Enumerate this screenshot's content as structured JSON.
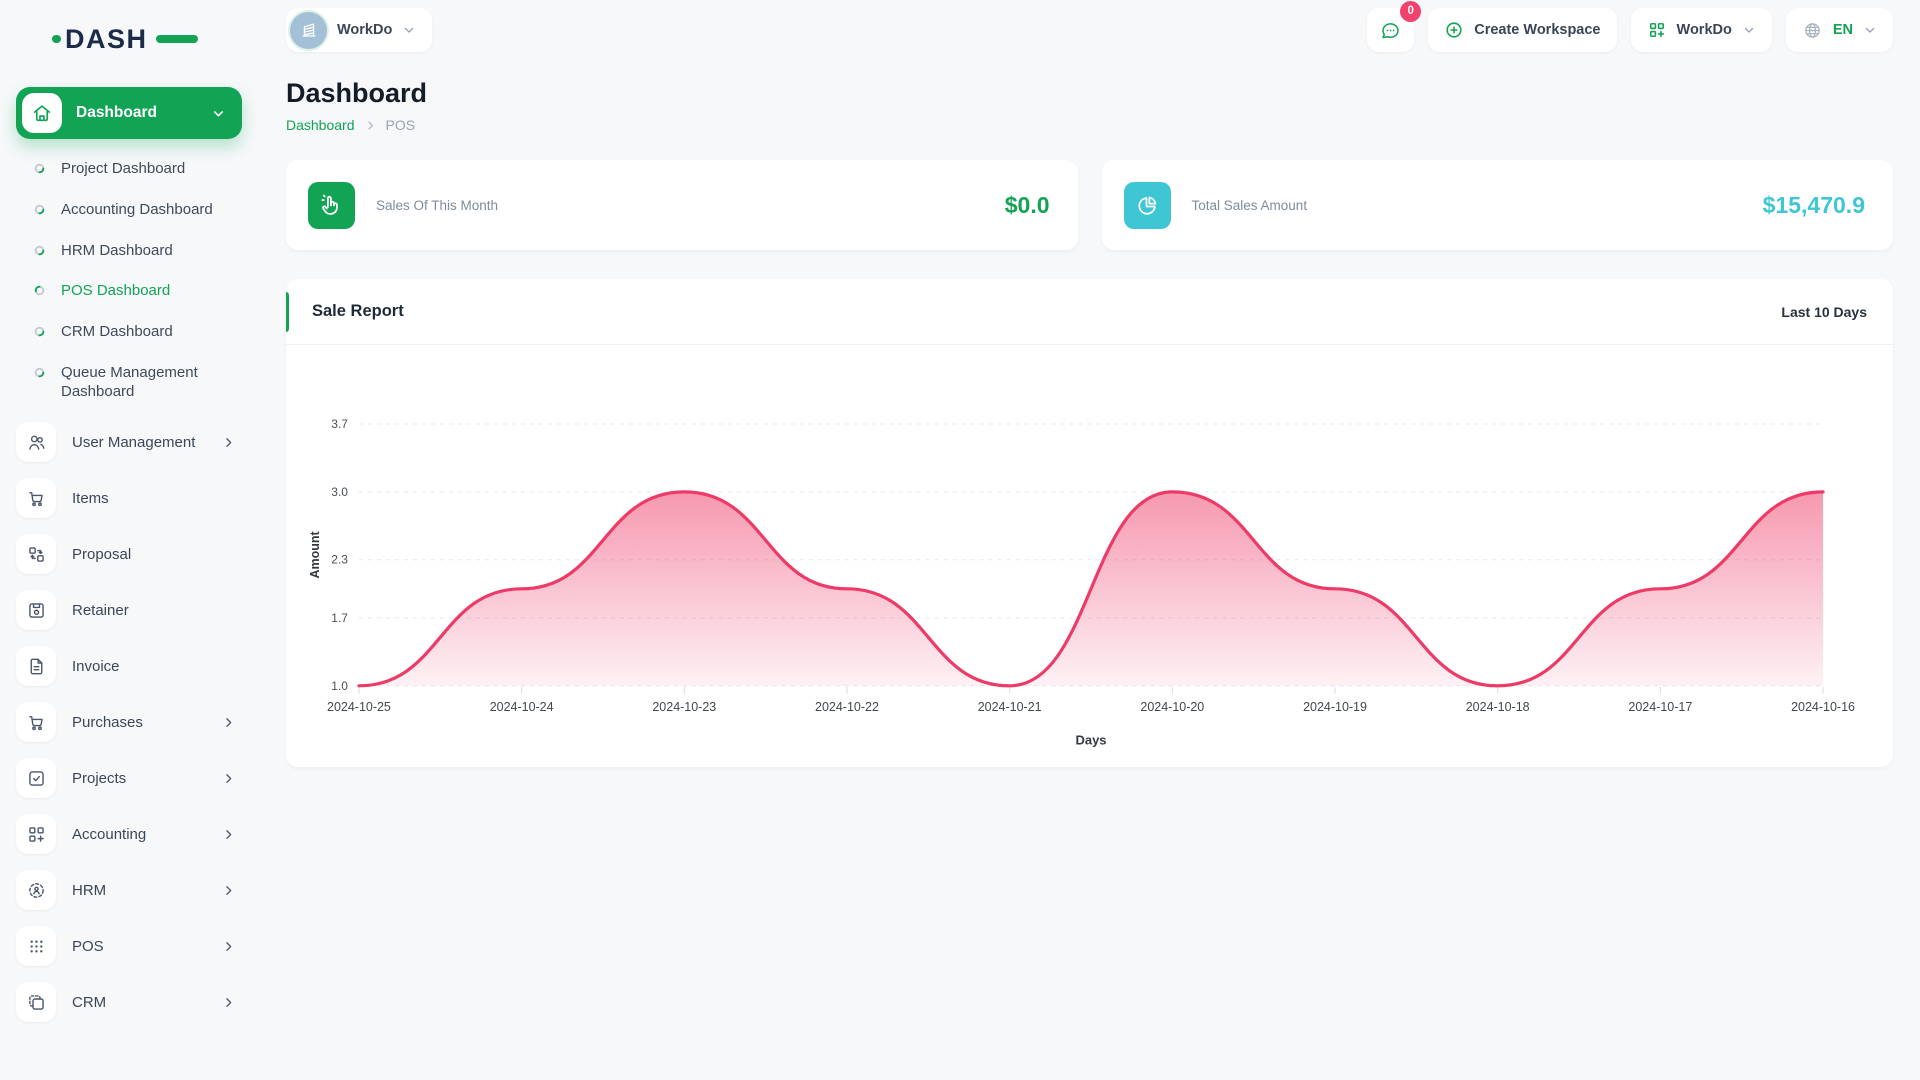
{
  "brand": {
    "logo_text": "DASH"
  },
  "header": {
    "workspace_switcher_label": "WorkDo",
    "messages_badge": "0",
    "create_workspace_label": "Create Workspace",
    "user_menu_label": "WorkDo",
    "language_label": "EN"
  },
  "page": {
    "title": "Dashboard",
    "breadcrumb": [
      "Dashboard",
      "POS"
    ]
  },
  "sidebar": {
    "group_label": "Dashboard",
    "children": [
      "Project Dashboard",
      "Accounting Dashboard",
      "HRM Dashboard",
      "POS Dashboard",
      "CRM Dashboard",
      "Queue Management Dashboard"
    ],
    "active_child": "POS Dashboard",
    "items": [
      {
        "label": "User Management",
        "expandable": true
      },
      {
        "label": "Items",
        "expandable": false
      },
      {
        "label": "Proposal",
        "expandable": false
      },
      {
        "label": "Retainer",
        "expandable": false
      },
      {
        "label": "Invoice",
        "expandable": false
      },
      {
        "label": "Purchases",
        "expandable": true
      },
      {
        "label": "Projects",
        "expandable": true
      },
      {
        "label": "Accounting",
        "expandable": true
      },
      {
        "label": "HRM",
        "expandable": true
      },
      {
        "label": "POS",
        "expandable": true
      },
      {
        "label": "CRM",
        "expandable": true
      }
    ]
  },
  "stats": [
    {
      "label": "Sales Of This Month",
      "value": "$0.0",
      "accent": "#12a454",
      "icon": "hand-click-icon"
    },
    {
      "label": "Total Sales Amount",
      "value": "$15,470.9",
      "accent": "#3ec6d4",
      "icon": "pie-chart-icon"
    }
  ],
  "chart_card": {
    "title": "Sale Report",
    "range_label": "Last 10 Days"
  },
  "chart_data": {
    "type": "area",
    "title": "Sale Report",
    "x": [
      "2024-10-25",
      "2024-10-24",
      "2024-10-23",
      "2024-10-22",
      "2024-10-21",
      "2024-10-20",
      "2024-10-19",
      "2024-10-18",
      "2024-10-17",
      "2024-10-16"
    ],
    "series": [
      {
        "name": "Amount",
        "values": [
          1.0,
          2.0,
          3.0,
          2.0,
          1.0,
          3.0,
          2.0,
          1.0,
          2.0,
          3.0
        ]
      }
    ],
    "xlabel": "Days",
    "ylabel": "Amount",
    "y_ticks": [
      1.0,
      1.7,
      2.3,
      3.0,
      3.7
    ],
    "y_tick_labels": [
      "1.0",
      "1.7",
      "2.3",
      "3.0",
      "3.7"
    ],
    "ylim": [
      1.0,
      3.7
    ],
    "line_color": "#ee3a67",
    "curve": "smooth",
    "grid": "horizontal-dashed",
    "legend": "none"
  },
  "colors": {
    "accent_green": "#12a454",
    "accent_teal": "#3ec6d4",
    "accent_pink": "#f4406d",
    "navy": "#1c2b4a"
  }
}
